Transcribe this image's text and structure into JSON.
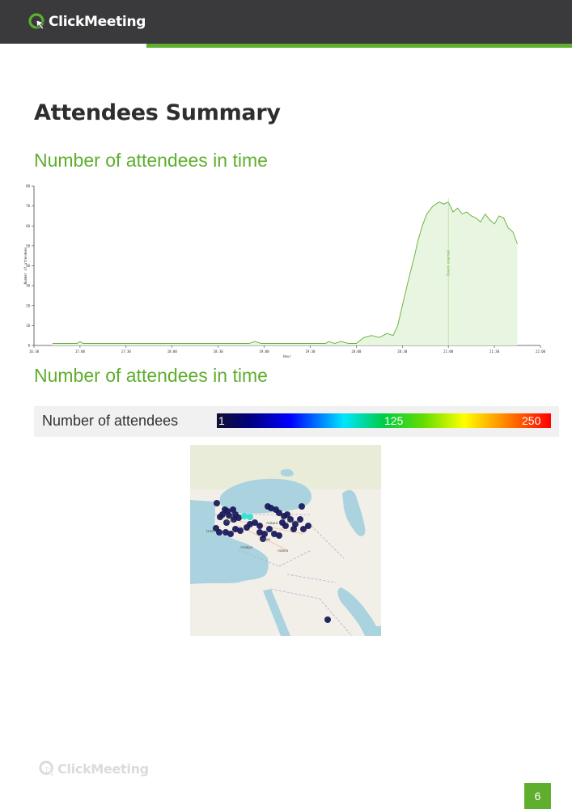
{
  "header": {
    "brand": "ClickMeeting"
  },
  "page": {
    "title": "Attendees Summary",
    "section1_title": "Number of attendees in time",
    "section2_title": "Number of attendees in time",
    "page_number": "6"
  },
  "colors": {
    "brand_green": "#5fae2e",
    "header_dark": "#3a3a3c"
  },
  "chart_data": {
    "type": "area",
    "title": "",
    "xlabel": "Hour",
    "ylabel": "Number of attendees",
    "x_ticks": [
      "16:30",
      "17:00",
      "17:30",
      "18:00",
      "18:30",
      "19:00",
      "19:30",
      "20:00",
      "20:30",
      "21:00",
      "21:30",
      "22:00"
    ],
    "y_ticks": [
      "0",
      "10",
      "20",
      "30",
      "40",
      "50",
      "60",
      "70",
      "80"
    ],
    "ylim": [
      0,
      80
    ],
    "grid": false,
    "annotation": {
      "label": "Event started",
      "x": "21:00"
    },
    "series": [
      {
        "x": [
          "16:42",
          "16:50",
          "16:58",
          "17:00",
          "17:02",
          "17:10",
          "17:30",
          "18:00",
          "18:30",
          "18:50",
          "18:54",
          "18:58",
          "19:30",
          "19:40",
          "19:42",
          "19:46",
          "19:50",
          "19:55",
          "20:00",
          "20:05",
          "20:10",
          "20:15",
          "20:20",
          "20:24",
          "20:27",
          "20:30",
          "20:34",
          "20:38",
          "20:40",
          "20:43",
          "20:46",
          "20:50",
          "20:54",
          "20:57",
          "21:00",
          "21:03",
          "21:06",
          "21:09",
          "21:12",
          "21:15",
          "21:18",
          "21:21",
          "21:24",
          "21:27",
          "21:30",
          "21:33",
          "21:36",
          "21:39",
          "21:42",
          "21:45"
        ],
        "values": [
          1,
          1,
          1,
          2,
          1,
          1,
          1,
          1,
          1,
          1,
          2,
          1,
          1,
          1,
          2,
          1,
          2,
          1,
          1,
          4,
          5,
          4,
          6,
          5,
          10,
          20,
          33,
          45,
          52,
          60,
          66,
          70,
          72,
          71,
          72,
          67,
          69,
          66,
          67,
          65,
          64,
          62,
          66,
          63,
          61,
          65,
          64,
          59,
          57,
          51
        ]
      }
    ]
  },
  "legend": {
    "label": "Number of attendees",
    "min": "1",
    "mid": "125",
    "max": "250"
  },
  "map": {
    "points_value": [
      3,
      3,
      3,
      3,
      3,
      3,
      3,
      3,
      3,
      3,
      3,
      3,
      3,
      3,
      3,
      3,
      3,
      3,
      3,
      3,
      3,
      3,
      3,
      3,
      3,
      3,
      3,
      3,
      3,
      3,
      3,
      3,
      3,
      3,
      3,
      3,
      3,
      3,
      3,
      70,
      60,
      3,
      3,
      3,
      3
    ],
    "labels": [
      "Ankara",
      "İzmir",
      "Bursa",
      "Antalya",
      "Konya",
      "Kayseri",
      "Adana"
    ]
  },
  "footer": {
    "brand": "ClickMeeting"
  }
}
